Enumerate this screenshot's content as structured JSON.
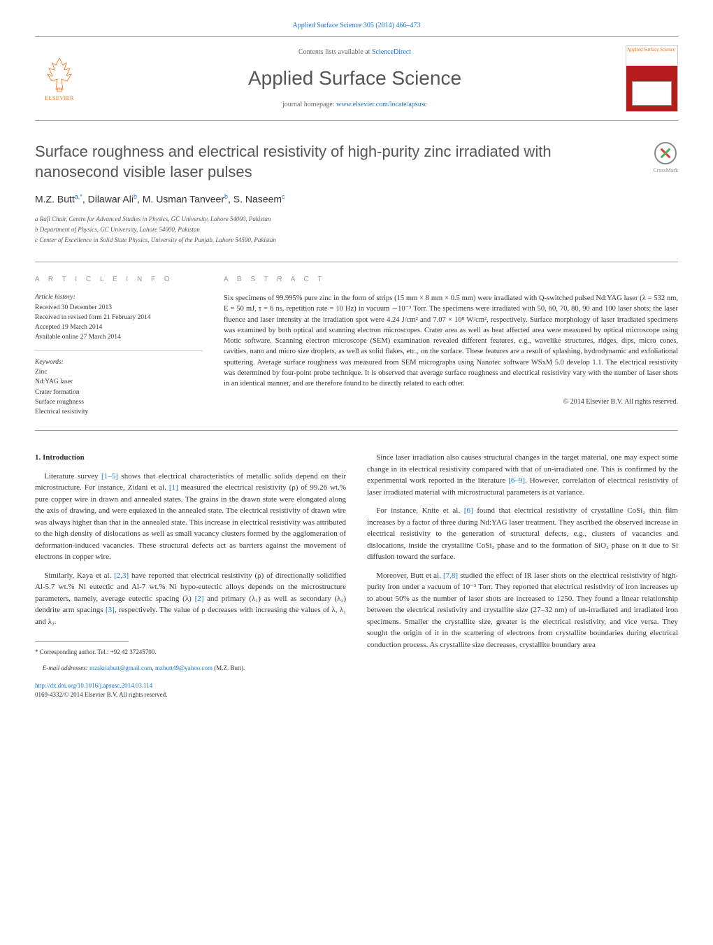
{
  "citation": "Applied Surface Science 305 (2014) 466–473",
  "journal_box": {
    "contents_label": "Contents lists available at ",
    "contents_link": "ScienceDirect",
    "journal_name": "Applied Surface Science",
    "homepage_label": "journal homepage: ",
    "homepage_link": "www.elsevier.com/locate/apsusc",
    "elsevier_label": "ELSEVIER",
    "cover_label": "Applied Surface Science"
  },
  "article": {
    "title": "Surface roughness and electrical resistivity of high-purity zinc irradiated with nanosecond visible laser pulses",
    "crossmark_label": "CrossMark",
    "authors_html": "M.Z. Butt<sup>a,*</sup>, Dilawar Ali<sup>b</sup>, M. Usman Tanveer<sup>b</sup>, S. Naseem<sup>c</sup>",
    "affiliations": [
      "a Rafi Chair, Centre for Advanced Studies in Physics, GC University, Lahore 54000, Pakistan",
      "b Department of Physics, GC University, Lahore 54000, Pakistan",
      "c Center of Excellence in Solid State Physics, University of the Punjab, Lahore 54590, Pakistan"
    ]
  },
  "article_info": {
    "label": "A R T I C L E   I N F O",
    "history_title": "Article history:",
    "history": [
      "Received 30 December 2013",
      "Received in revised form 21 February 2014",
      "Accepted 19 March 2014",
      "Available online 27 March 2014"
    ],
    "keywords_title": "Keywords:",
    "keywords": [
      "Zinc",
      "Nd:YAG laser",
      "Crater formation",
      "Surface roughness",
      "Electrical resistivity"
    ]
  },
  "abstract": {
    "label": "A B S T R A C T",
    "text": "Six specimens of 99.995% pure zinc in the form of strips (15 mm × 8 mm × 0.5 mm) were irradiated with Q-switched pulsed Nd:YAG laser (λ = 532 nm, E = 50 mJ, τ = 6 ns, repetition rate = 10 Hz) in vacuum ∼10⁻³ Torr. The specimens were irradiated with 50, 60, 70, 80, 90 and 100 laser shots; the laser fluence and laser intensity at the irradiation spot were 4.24 J/cm² and 7.07 × 10⁸ W/cm², respectively. Surface morphology of laser irradiated specimens was examined by both optical and scanning electron microscopes. Crater area as well as heat affected area were measured by optical microscope using Motic software. Scanning electron microscope (SEM) examination revealed different features, e.g., wavelike structures, ridges, dips, micro cones, cavities, nano and micro size droplets, as well as solid flakes, etc., on the surface. These features are a result of splashing, hydrodynamic and exfoliational sputtering. Average surface roughness was measured from SEM micrographs using Nanotec software WSxM 5.0 develop 1.1. The electrical resistivity was determined by four-point probe technique. It is observed that average surface roughness and electrical resistivity vary with the number of laser shots in an identical manner, and are therefore found to be directly related to each other.",
    "copyright": "© 2014 Elsevier B.V. All rights reserved."
  },
  "body": {
    "intro_heading": "1. Introduction",
    "left_paras": [
      "Literature survey [1–5] shows that electrical characteristics of metallic solids depend on their microstructure. For instance, Zidani et al. [1] measured the electrical resistivity (ρ) of 99.26 wt.% pure copper wire in drawn and annealed states. The grains in the drawn state were elongated along the axis of drawing, and were equiaxed in the annealed state. The electrical resistivity of drawn wire was always higher than that in the annealed state. This increase in electrical resistivity was attributed to the high density of dislocations as well as small vacancy clusters formed by the agglomeration of deformation-induced vacancies. These structural defects act as barriers against the movement of electrons in copper wire.",
      "Similarly, Kaya et al. [2,3] have reported that electrical resistivity (ρ) of directionally solidified Al-5.7 wt.% Ni eutectic and Al-7 wt.% Ni hypo-eutectic alloys depends on the microstructure parameters, namely, average eutectic spacing (λ) [2] and primary (λ₁) as well as secondary (λ₂) dendrite arm spacings [3], respectively. The value of ρ decreases with increasing the values of λ, λ₁ and λ₂."
    ],
    "right_paras": [
      "Since laser irradiation also causes structural changes in the target material, one may expect some change in its electrical resistivity compared with that of un-irradiated one. This is confirmed by the experimental work reported in the literature [6–9]. However, correlation of electrical resistivity of laser irradiated material with microstructural parameters is at variance.",
      "For instance, Knite et al. [6] found that electrical resistivity of crystalline CoSi₂ thin film increases by a factor of three during Nd:YAG laser treatment. They ascribed the observed increase in electrical resistivity to the generation of structural defects, e.g., clusters of vacancies and dislocations, inside the crystalline CoSi₂ phase and to the formation of SiO₂ phase on it due to Si diffusion toward the surface.",
      "Moreover, Butt et al. [7,8] studied the effect of IR laser shots on the electrical resistivity of high-purity iron under a vacuum of 10⁻³ Torr. They reported that electrical resistivity of iron increases up to about 50% as the number of laser shots are increased to 1250. They found a linear relationship between the electrical resistivity and crystallite size (27–32 nm) of un-irradiated and irradiated iron specimens. Smaller the crystallite size, greater is the electrical resistivity, and vice versa. They sought the origin of it in the scattering of electrons from crystallite boundaries during electrical conduction process. As crystallite size decreases, crystallite boundary area"
    ]
  },
  "footnote": {
    "corresponding": "* Corresponding author. Tel.: +92 42 37245700.",
    "email_label": "E-mail addresses: ",
    "email1": "mzakriabutt@gmail.com",
    "email2": "mzbutt49@yahoo.com",
    "email_suffix": " (M.Z. Butt)."
  },
  "doi": {
    "link": "http://dx.doi.org/10.1016/j.apsusc.2014.03.114",
    "issn_line": "0169-4332/© 2014 Elsevier B.V. All rights reserved."
  },
  "refs": {
    "r1_5": "[1–5]",
    "r1": "[1]",
    "r2_3": "[2,3]",
    "r2": "[2]",
    "r3": "[3]",
    "r6_9": "[6–9]",
    "r6": "[6]",
    "r7_8": "[7,8]"
  },
  "colors": {
    "link": "#1976d2",
    "orange": "#ff6b00",
    "red": "#b71c1c",
    "text": "#333",
    "muted": "#666",
    "rule": "#999"
  }
}
